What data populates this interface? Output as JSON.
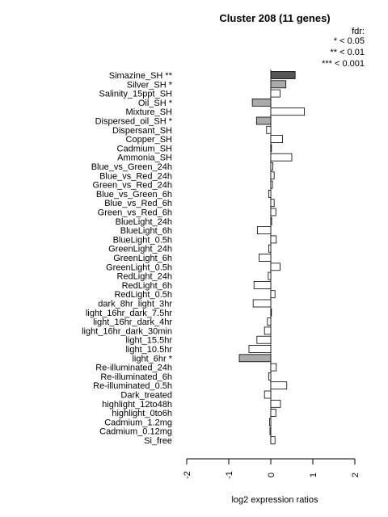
{
  "chart_data": {
    "type": "bar",
    "orientation": "horizontal",
    "title": "Cluster 208 (11 genes)",
    "xlabel": "log2 expression ratios",
    "xlim": [
      -2,
      2
    ],
    "xticks": [
      -2,
      -1,
      0,
      1,
      2
    ],
    "xtick_labels": [
      "-2",
      "-1",
      "0",
      "1",
      "2"
    ],
    "legend": {
      "position": "top-right",
      "title": "fdr:",
      "entries": [
        "* < 0.05",
        "** < 0.01",
        "*** < 0.001"
      ]
    },
    "colors": {
      "p01": "#555555",
      "p05": "#aaaaaa",
      "ns": "#ffffff"
    },
    "categories": [
      "Simazine_SH **",
      "Silver_SH *",
      "Salinity_15ppt_SH",
      "Oil_SH *",
      "Mixture_SH",
      "Dispersed_oil_SH *",
      "Dispersant_SH",
      "Copper_SH",
      "Cadmium_SH",
      "Ammonia_SH",
      "Blue_vs_Green_24h",
      "Blue_vs_Red_24h",
      "Green_vs_Red_24h",
      "Blue_vs_Green_6h",
      "Blue_vs_Red_6h",
      "Green_vs_Red_6h",
      "BlueLight_24h",
      "BlueLight_6h",
      "BlueLight_0.5h",
      "GreenLight_24h",
      "GreenLight_6h",
      "GreenLight_0.5h",
      "RedLight_24h",
      "RedLight_6h",
      "RedLight_0.5h",
      "dark_8hr_light_3hr",
      "light_16hr_dark_7.5hr",
      "light_16hr_dark_4hr",
      "light_16hr_dark_30min",
      "light_15.5hr",
      "light_10.5hr",
      "light_6hr *",
      "Re-illuminated_24h",
      "Re-illuminated_6h",
      "Re-illuminated_0.5h",
      "Dark_treated",
      "highlight_12to48h",
      "highlight_0to6h",
      "Cadmium_1.2mg",
      "Cadmium_0.12mg",
      "Si_free"
    ],
    "values": [
      0.58,
      0.36,
      0.22,
      -0.44,
      0.8,
      -0.34,
      -0.1,
      0.28,
      0.01,
      0.5,
      0.05,
      0.08,
      0.04,
      -0.05,
      0.08,
      0.12,
      0.02,
      -0.32,
      0.13,
      -0.05,
      -0.28,
      0.22,
      -0.06,
      -0.4,
      0.1,
      -0.42,
      0.01,
      -0.08,
      -0.15,
      -0.33,
      -0.52,
      -0.75,
      0.13,
      -0.05,
      0.38,
      -0.15,
      0.23,
      0.12,
      -0.03,
      -0.02,
      0.1
    ],
    "significance": [
      "p01",
      "p05",
      "ns",
      "p05",
      "ns",
      "p05",
      "ns",
      "ns",
      "ns",
      "ns",
      "ns",
      "ns",
      "ns",
      "ns",
      "ns",
      "ns",
      "ns",
      "ns",
      "ns",
      "ns",
      "ns",
      "ns",
      "ns",
      "ns",
      "ns",
      "ns",
      "ns",
      "ns",
      "ns",
      "ns",
      "ns",
      "p05",
      "ns",
      "ns",
      "ns",
      "ns",
      "ns",
      "ns",
      "ns",
      "ns",
      "ns"
    ]
  }
}
